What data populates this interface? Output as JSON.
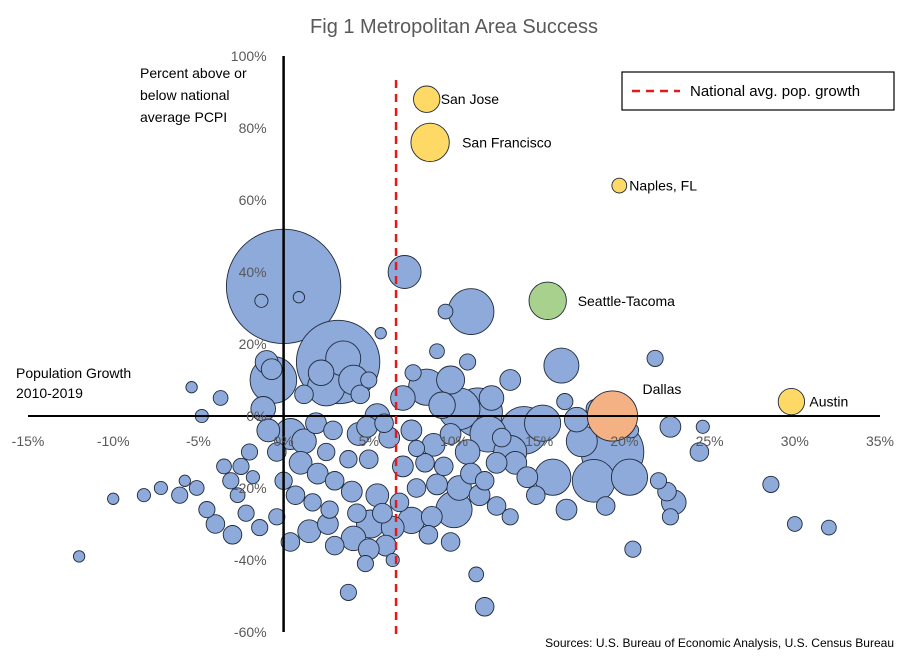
{
  "chart_data": {
    "type": "scatter",
    "subtype": "bubble",
    "title": "Fig 1 Metropolitan Area Success",
    "xlabel": "Population Growth 2010-2019",
    "ylabel": "Percent above or below national average PCPI",
    "xlim": [
      -0.15,
      0.35
    ],
    "ylim": [
      -0.6,
      1.0
    ],
    "x_ticks": [
      "-15%",
      "-10%",
      "-5%",
      "0%",
      "5%",
      "10%",
      "15%",
      "20%",
      "25%",
      "30%",
      "35%"
    ],
    "y_ticks": [
      "100%",
      "80%",
      "60%",
      "40%",
      "20%",
      "0%",
      "-20%",
      "-40%",
      "-60%"
    ],
    "grid": false,
    "legend": {
      "position": "top-right",
      "entries": [
        {
          "label": "National avg. pop. growth",
          "style": "dashed",
          "color": "#e31a1c"
        }
      ]
    },
    "reference_line": {
      "x": 0.066,
      "label": "National avg. pop. growth",
      "color": "#e31a1c"
    },
    "source": "Sources: U.S. Bureau of Economic Analysis, U.S. Census Bureau",
    "colors": {
      "default": "#8eaadb",
      "gold": "#ffd966",
      "green": "#a9d18e",
      "orange": "#f4b183"
    },
    "labeled_points": [
      {
        "label": "San Jose",
        "x": 0.084,
        "y": 0.88,
        "size": 16,
        "color": "gold"
      },
      {
        "label": "San Francisco",
        "x": 0.086,
        "y": 0.76,
        "size": 34,
        "color": "gold"
      },
      {
        "label": "Naples, FL",
        "x": 0.197,
        "y": 0.64,
        "size": 5,
        "color": "gold"
      },
      {
        "label": "Seattle-Tacoma",
        "x": 0.155,
        "y": 0.32,
        "size": 32,
        "color": "green"
      },
      {
        "label": "Dallas",
        "x": 0.193,
        "y": 0.0,
        "size": 58,
        "color": "orange"
      },
      {
        "label": "Austin",
        "x": 0.298,
        "y": 0.04,
        "size": 16,
        "color": "gold"
      }
    ],
    "points": [
      [
        0.0,
        0.36,
        300
      ],
      [
        0.071,
        0.4,
        25
      ],
      [
        0.11,
        0.29,
        48
      ],
      [
        0.032,
        0.15,
        160
      ],
      [
        0.095,
        0.29,
        5
      ],
      [
        -0.013,
        0.32,
        4
      ],
      [
        0.009,
        0.33,
        3
      ],
      [
        0.057,
        0.23,
        3
      ],
      [
        -0.006,
        0.1,
        50
      ],
      [
        0.025,
        0.08,
        32
      ],
      [
        0.041,
        0.1,
        20
      ],
      [
        0.022,
        0.12,
        15
      ],
      [
        0.035,
        0.16,
        28
      ],
      [
        -0.007,
        0.13,
        10
      ],
      [
        0.084,
        0.08,
        30
      ],
      [
        0.07,
        0.05,
        14
      ],
      [
        0.098,
        0.1,
        18
      ],
      [
        0.103,
        0.02,
        40
      ],
      [
        0.114,
        0.01,
        55
      ],
      [
        0.12,
        -0.05,
        30
      ],
      [
        0.141,
        -0.04,
        52
      ],
      [
        0.133,
        -0.1,
        25
      ],
      [
        0.152,
        -0.02,
        30
      ],
      [
        0.163,
        0.14,
        28
      ],
      [
        0.198,
        0.0,
        20
      ],
      [
        0.193,
        -0.1,
        90
      ],
      [
        0.175,
        -0.07,
        22
      ],
      [
        0.182,
        -0.18,
        42
      ],
      [
        0.158,
        -0.17,
        30
      ],
      [
        0.203,
        -0.17,
        30
      ],
      [
        0.218,
        0.16,
        6
      ],
      [
        0.227,
        -0.03,
        10
      ],
      [
        0.244,
        -0.1,
        8
      ],
      [
        0.246,
        -0.03,
        4
      ],
      [
        0.204,
        -0.04,
        5
      ],
      [
        0.22,
        -0.18,
        6
      ],
      [
        0.225,
        -0.21,
        8
      ],
      [
        0.229,
        -0.24,
        14
      ],
      [
        0.227,
        -0.28,
        6
      ],
      [
        0.286,
        -0.19,
        6
      ],
      [
        0.3,
        -0.3,
        5
      ],
      [
        0.32,
        -0.31,
        5
      ],
      [
        0.205,
        -0.37,
        6
      ],
      [
        0.118,
        -0.53,
        8
      ],
      [
        0.113,
        -0.44,
        5
      ],
      [
        0.038,
        -0.49,
        6
      ],
      [
        0.064,
        -0.4,
        4
      ],
      [
        0.048,
        -0.41,
        6
      ],
      [
        -0.12,
        -0.39,
        3
      ],
      [
        -0.1,
        -0.23,
        3
      ],
      [
        -0.082,
        -0.22,
        4
      ],
      [
        -0.072,
        -0.2,
        4
      ],
      [
        -0.061,
        -0.22,
        6
      ],
      [
        -0.058,
        -0.18,
        3
      ],
      [
        -0.051,
        -0.2,
        5
      ],
      [
        -0.054,
        0.08,
        3
      ],
      [
        -0.048,
        0.0,
        4
      ],
      [
        -0.035,
        -0.14,
        5
      ],
      [
        -0.031,
        -0.18,
        6
      ],
      [
        -0.027,
        -0.22,
        5
      ],
      [
        -0.018,
        -0.17,
        4
      ],
      [
        -0.012,
        0.02,
        14
      ],
      [
        -0.009,
        -0.04,
        12
      ],
      [
        0.004,
        -0.05,
        22
      ],
      [
        0.012,
        -0.07,
        14
      ],
      [
        0.019,
        -0.02,
        10
      ],
      [
        0.029,
        -0.04,
        8
      ],
      [
        0.044,
        -0.05,
        12
      ],
      [
        0.049,
        -0.03,
        10
      ],
      [
        0.059,
        -0.02,
        8
      ],
      [
        0.062,
        -0.06,
        10
      ],
      [
        0.075,
        -0.04,
        10
      ],
      [
        0.078,
        -0.09,
        6
      ],
      [
        0.088,
        -0.08,
        12
      ],
      [
        0.098,
        -0.05,
        10
      ],
      [
        0.108,
        -0.1,
        14
      ],
      [
        0.128,
        -0.06,
        8
      ],
      [
        0.136,
        -0.13,
        12
      ],
      [
        0.143,
        -0.17,
        10
      ],
      [
        0.148,
        -0.22,
        8
      ],
      [
        0.166,
        -0.26,
        10
      ],
      [
        0.189,
        -0.25,
        8
      ],
      [
        0.1,
        -0.26,
        30
      ],
      [
        0.087,
        -0.28,
        10
      ],
      [
        0.075,
        -0.29,
        16
      ],
      [
        0.064,
        -0.31,
        12
      ],
      [
        0.051,
        -0.3,
        18
      ],
      [
        0.041,
        -0.34,
        14
      ],
      [
        0.026,
        -0.3,
        10
      ],
      [
        0.015,
        -0.32,
        12
      ],
      [
        0.004,
        -0.35,
        8
      ],
      [
        -0.004,
        -0.28,
        6
      ],
      [
        -0.014,
        -0.31,
        6
      ],
      [
        -0.022,
        -0.27,
        6
      ],
      [
        -0.03,
        -0.33,
        8
      ],
      [
        -0.04,
        -0.3,
        8
      ],
      [
        -0.045,
        -0.26,
        6
      ],
      [
        0.01,
        -0.13,
        12
      ],
      [
        0.02,
        -0.16,
        10
      ],
      [
        0.03,
        -0.18,
        8
      ],
      [
        0.04,
        -0.21,
        10
      ],
      [
        0.055,
        -0.22,
        12
      ],
      [
        0.068,
        -0.24,
        8
      ],
      [
        0.078,
        -0.2,
        8
      ],
      [
        0.09,
        -0.19,
        10
      ],
      [
        0.103,
        -0.2,
        14
      ],
      [
        0.115,
        -0.22,
        10
      ],
      [
        0.125,
        -0.25,
        8
      ],
      [
        0.133,
        -0.28,
        6
      ],
      [
        0.098,
        -0.35,
        8
      ],
      [
        0.085,
        -0.33,
        8
      ],
      [
        0.06,
        -0.36,
        10
      ],
      [
        0.05,
        -0.37,
        10
      ],
      [
        0.03,
        -0.36,
        8
      ],
      [
        -0.004,
        -0.1,
        8
      ],
      [
        -0.02,
        -0.1,
        6
      ],
      [
        -0.025,
        -0.14,
        6
      ],
      [
        0.0,
        -0.18,
        7
      ],
      [
        0.007,
        -0.22,
        8
      ],
      [
        0.017,
        -0.24,
        7
      ],
      [
        0.027,
        -0.26,
        7
      ],
      [
        0.043,
        -0.27,
        8
      ],
      [
        0.058,
        -0.27,
        9
      ],
      [
        0.07,
        -0.14,
        10
      ],
      [
        0.083,
        -0.13,
        8
      ],
      [
        0.094,
        -0.14,
        8
      ],
      [
        0.11,
        -0.16,
        10
      ],
      [
        0.118,
        -0.18,
        8
      ],
      [
        0.125,
        -0.13,
        10
      ],
      [
        0.05,
        -0.12,
        8
      ],
      [
        0.038,
        -0.12,
        7
      ],
      [
        0.025,
        -0.1,
        7
      ],
      [
        0.055,
        0.0,
        14
      ],
      [
        0.045,
        0.06,
        8
      ],
      [
        0.05,
        0.1,
        6
      ],
      [
        0.093,
        0.03,
        16
      ],
      [
        0.09,
        0.18,
        5
      ],
      [
        0.108,
        0.15,
        6
      ],
      [
        -0.037,
        0.05,
        5
      ],
      [
        0.012,
        0.06,
        8
      ],
      [
        -0.01,
        0.15,
        12
      ],
      [
        0.076,
        0.12,
        6
      ],
      [
        0.133,
        0.1,
        10
      ],
      [
        0.122,
        0.05,
        14
      ],
      [
        0.172,
        -0.01,
        14
      ],
      [
        0.165,
        0.04,
        6
      ],
      [
        0.183,
        0.02,
        8
      ]
    ]
  }
}
